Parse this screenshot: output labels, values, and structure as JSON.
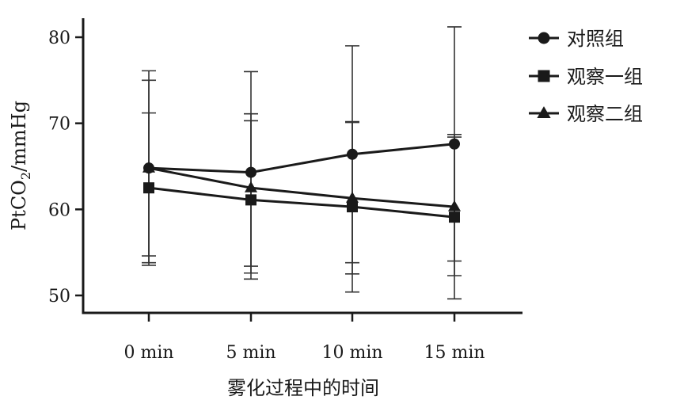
{
  "chart_data": {
    "type": "line",
    "categories": [
      "0 min",
      "5 min",
      "10 min",
      "15 min"
    ],
    "xlabel": "雾化过程中的时间",
    "ylabel_main": "PtCO",
    "ylabel_sub": "2",
    "ylabel_unit": "/mmHg",
    "ylim": [
      48,
      83
    ],
    "yticks": [
      50,
      60,
      70,
      80
    ],
    "grid": false,
    "legend_position": "top-right",
    "series": [
      {
        "name": "对照组",
        "marker": "circle",
        "values": [
          64.8,
          64.3,
          66.4,
          67.6
        ],
        "err_low": [
          54.6,
          52.6,
          53.8,
          54.0
        ],
        "err_high": [
          75.0,
          76.0,
          79.0,
          81.2
        ]
      },
      {
        "name": "观察一组",
        "marker": "square",
        "values": [
          62.5,
          61.1,
          60.3,
          59.1
        ],
        "err_low": [
          53.5,
          51.9,
          50.4,
          49.6
        ],
        "err_high": [
          71.2,
          70.3,
          70.1,
          68.7
        ]
      },
      {
        "name": "观察二组",
        "marker": "triangle",
        "values": [
          64.8,
          62.5,
          61.3,
          60.3
        ],
        "err_low": [
          53.8,
          53.4,
          52.5,
          52.3
        ],
        "err_high": [
          76.1,
          71.1,
          70.2,
          68.4
        ]
      }
    ]
  }
}
